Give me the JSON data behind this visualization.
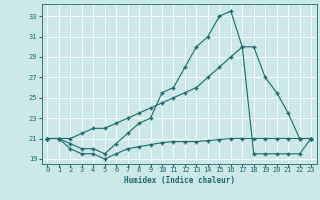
{
  "xlabel": "Humidex (Indice chaleur)",
  "bg_color": "#cce8e8",
  "grid_color": "#ffffff",
  "line_color": "#1a6b6b",
  "xlim": [
    -0.5,
    23.5
  ],
  "ylim": [
    18.5,
    34.2
  ],
  "xticks": [
    0,
    1,
    2,
    3,
    4,
    5,
    6,
    7,
    8,
    9,
    10,
    11,
    12,
    13,
    14,
    15,
    16,
    17,
    18,
    19,
    20,
    21,
    22,
    23
  ],
  "yticks": [
    19,
    21,
    23,
    25,
    27,
    29,
    31,
    33
  ],
  "line1_x": [
    0,
    1,
    2,
    3,
    4,
    5,
    6,
    7,
    8,
    9,
    10,
    11,
    12,
    13,
    14,
    15,
    16,
    17,
    18,
    19,
    20,
    21,
    22,
    23
  ],
  "line1_y": [
    21.0,
    21.0,
    20.0,
    19.5,
    19.5,
    19.0,
    19.5,
    20.0,
    20.2,
    20.4,
    20.6,
    20.7,
    20.7,
    20.7,
    20.8,
    20.9,
    21.0,
    21.0,
    21.0,
    21.0,
    21.0,
    21.0,
    21.0,
    21.0
  ],
  "line2_x": [
    0,
    1,
    2,
    3,
    4,
    5,
    6,
    7,
    8,
    9,
    10,
    11,
    12,
    13,
    14,
    15,
    16,
    17,
    18,
    19,
    20,
    21,
    22,
    23
  ],
  "line2_y": [
    21.0,
    21.0,
    21.0,
    21.5,
    22.0,
    22.0,
    22.5,
    23.0,
    23.5,
    24.0,
    24.5,
    25.0,
    25.5,
    26.0,
    27.0,
    28.0,
    29.0,
    30.0,
    19.5,
    19.5,
    19.5,
    19.5,
    19.5,
    21.0
  ],
  "line3_x": [
    0,
    1,
    2,
    3,
    4,
    5,
    6,
    7,
    8,
    9,
    10,
    11,
    12,
    13,
    14,
    15,
    16,
    17,
    18,
    19,
    20,
    21,
    22,
    23
  ],
  "line3_y": [
    21.0,
    21.0,
    20.5,
    20.0,
    20.0,
    19.5,
    20.5,
    21.5,
    22.5,
    23.0,
    25.5,
    26.0,
    28.0,
    30.0,
    31.0,
    33.0,
    33.5,
    30.0,
    30.0,
    27.0,
    25.5,
    23.5,
    21.0,
    21.0
  ]
}
